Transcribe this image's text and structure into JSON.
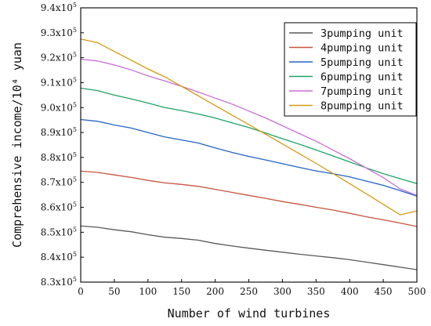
{
  "chart_data": {
    "type": "line",
    "xlabel": "Number of wind turbines",
    "ylabel": "Comprehensive income/10⁴ yuan",
    "xlim": [
      0,
      500
    ],
    "ylim": [
      830000,
      940000
    ],
    "xticks": [
      0,
      50,
      100,
      150,
      200,
      250,
      300,
      350,
      400,
      450,
      500
    ],
    "yticks": [
      830000,
      840000,
      850000,
      860000,
      870000,
      880000,
      890000,
      900000,
      910000,
      920000,
      930000,
      940000
    ],
    "ytick_labels": [
      {
        "mantissa": "8.3x10",
        "exp": "5"
      },
      {
        "mantissa": "8.4x10",
        "exp": "5"
      },
      {
        "mantissa": "8.5x10",
        "exp": "5"
      },
      {
        "mantissa": "8.6x10",
        "exp": "5"
      },
      {
        "mantissa": "8.7x10",
        "exp": "5"
      },
      {
        "mantissa": "8.8x10",
        "exp": "5"
      },
      {
        "mantissa": "8.9x10",
        "exp": "5"
      },
      {
        "mantissa": "9.0x10",
        "exp": "5"
      },
      {
        "mantissa": "9.1x10",
        "exp": "5"
      },
      {
        "mantissa": "9.2x10",
        "exp": "5"
      },
      {
        "mantissa": "9.3x10",
        "exp": "5"
      },
      {
        "mantissa": "9.4x10",
        "exp": "5"
      }
    ],
    "grid": false,
    "legend_position": "top-right",
    "x": [
      0,
      25,
      50,
      75,
      100,
      125,
      150,
      175,
      200,
      225,
      250,
      275,
      300,
      325,
      350,
      375,
      400,
      425,
      450,
      475,
      500
    ],
    "series": [
      {
        "name": "3pumping unit",
        "color": "#595959",
        "values": [
          852500,
          852000,
          851000,
          850200,
          849000,
          848000,
          847500,
          846800,
          845500,
          844500,
          843600,
          842800,
          842000,
          841200,
          840500,
          839800,
          839000,
          838000,
          837000,
          836000,
          835000
        ]
      },
      {
        "name": "4pumping unit",
        "color": "#c8553f",
        "values": [
          874500,
          874000,
          873000,
          872000,
          870800,
          869800,
          869200,
          868400,
          867200,
          866000,
          864800,
          863600,
          862300,
          861200,
          860000,
          858900,
          857600,
          856200,
          855000,
          853700,
          852300
        ]
      },
      {
        "name": "5pumping unit",
        "color": "#2364c6",
        "values": [
          895200,
          894500,
          893000,
          891800,
          890000,
          888200,
          887000,
          885800,
          883800,
          882000,
          880400,
          879000,
          877500,
          876000,
          874600,
          873500,
          872200,
          870500,
          868800,
          866700,
          864500
        ]
      },
      {
        "name": "6pumping unit",
        "color": "#21a366",
        "values": [
          907800,
          906800,
          905000,
          903500,
          901800,
          900000,
          898800,
          897400,
          895800,
          893900,
          892000,
          889800,
          887500,
          885300,
          883000,
          880600,
          878200,
          875800,
          873500,
          871500,
          869500
        ]
      },
      {
        "name": "7pumping unit",
        "color": "#c76fd4",
        "values": [
          919400,
          918700,
          917100,
          915100,
          912700,
          910700,
          908500,
          906200,
          903800,
          901400,
          898600,
          895800,
          892700,
          889600,
          886500,
          883000,
          879500,
          875700,
          871900,
          867400,
          864800
        ]
      },
      {
        "name": "8pumping unit",
        "color": "#d49a12",
        "values": [
          927500,
          926000,
          922500,
          919000,
          915500,
          912300,
          908500,
          904700,
          900800,
          897000,
          893200,
          889300,
          885400,
          881500,
          877600,
          873600,
          869500,
          865400,
          861200,
          857000,
          858500
        ]
      }
    ]
  }
}
